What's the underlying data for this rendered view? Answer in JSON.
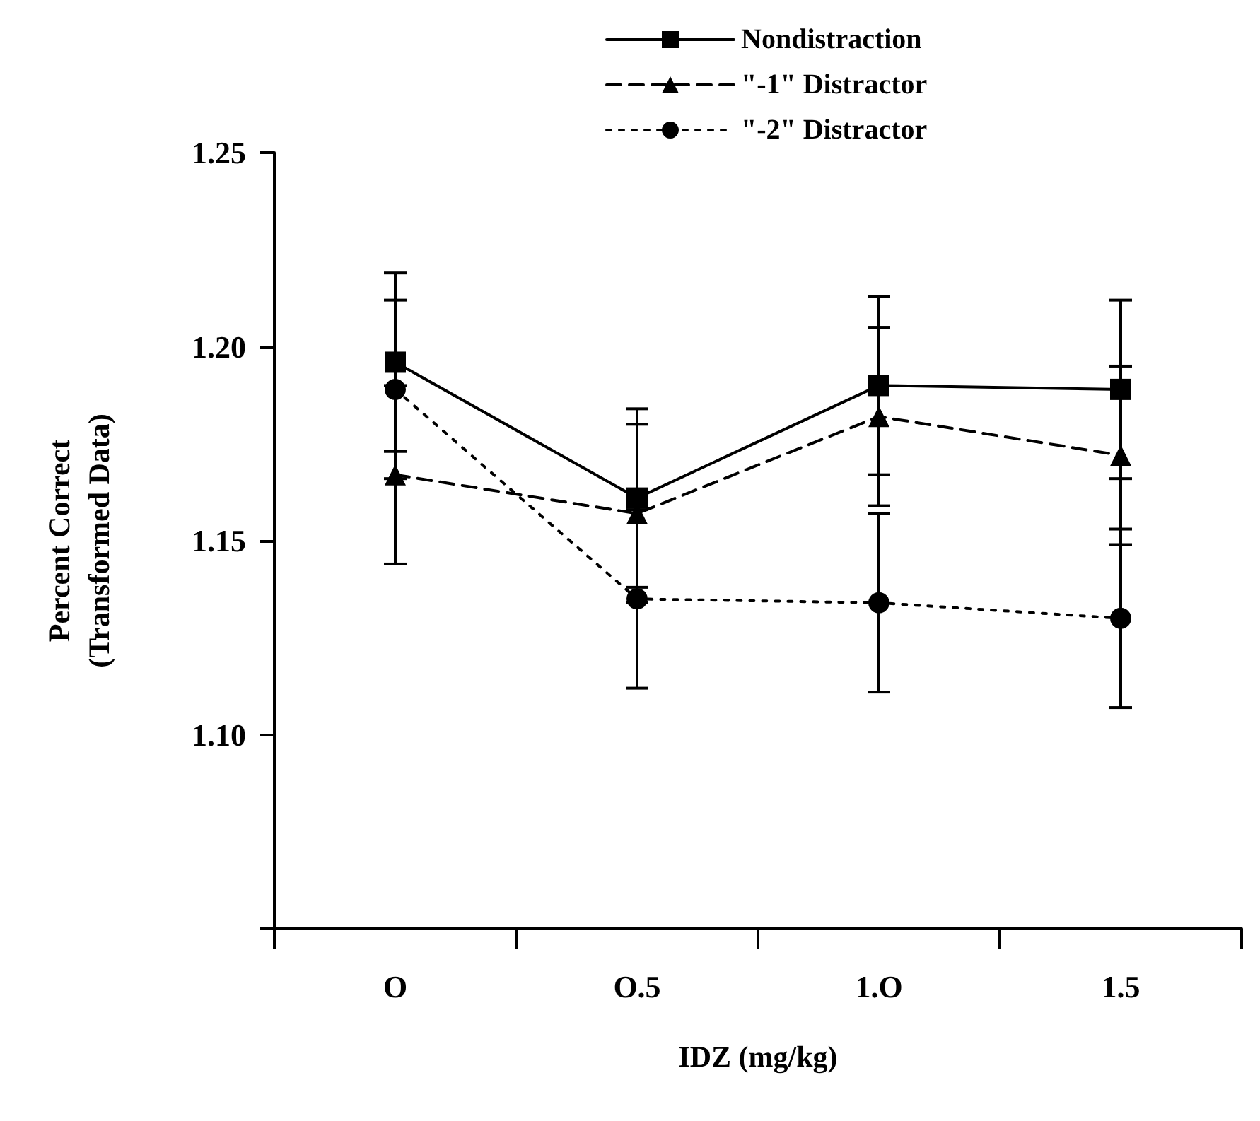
{
  "chart_data": {
    "type": "line",
    "xlabel": "IDZ (mg/kg)",
    "ylabel": "Percent Correct\n(Transformed Data)",
    "categories": [
      "O",
      "O.5",
      "1.O",
      "1.5"
    ],
    "series": [
      {
        "name": "Nondistraction",
        "color": "#000000",
        "marker": "square",
        "line_style": "solid",
        "values": [
          1.196,
          1.161,
          1.19,
          1.189
        ],
        "errors": [
          0.023,
          0.023,
          0.023,
          0.023
        ]
      },
      {
        "name": "\"-1\" Distractor",
        "color": "#000000",
        "marker": "triangle",
        "line_style": "dashed",
        "values": [
          1.167,
          1.157,
          1.182,
          1.172
        ],
        "errors": [
          0.023,
          0.023,
          0.023,
          0.023
        ]
      },
      {
        "name": "\"-2\" Distractor",
        "color": "#000000",
        "marker": "circle",
        "line_style": "dotted",
        "values": [
          1.189,
          1.135,
          1.134,
          1.13
        ],
        "errors": [
          0.023,
          0.023,
          0.023,
          0.023
        ]
      }
    ],
    "ylim": [
      1.05,
      1.25
    ],
    "yticks": [
      {
        "value": 1.05,
        "label": null
      },
      {
        "value": 1.1,
        "label": "1.10"
      },
      1.15,
      {
        "value": 1.2,
        "label": "1.20"
      },
      1.25
    ],
    "grid": false,
    "legend": "top right"
  }
}
